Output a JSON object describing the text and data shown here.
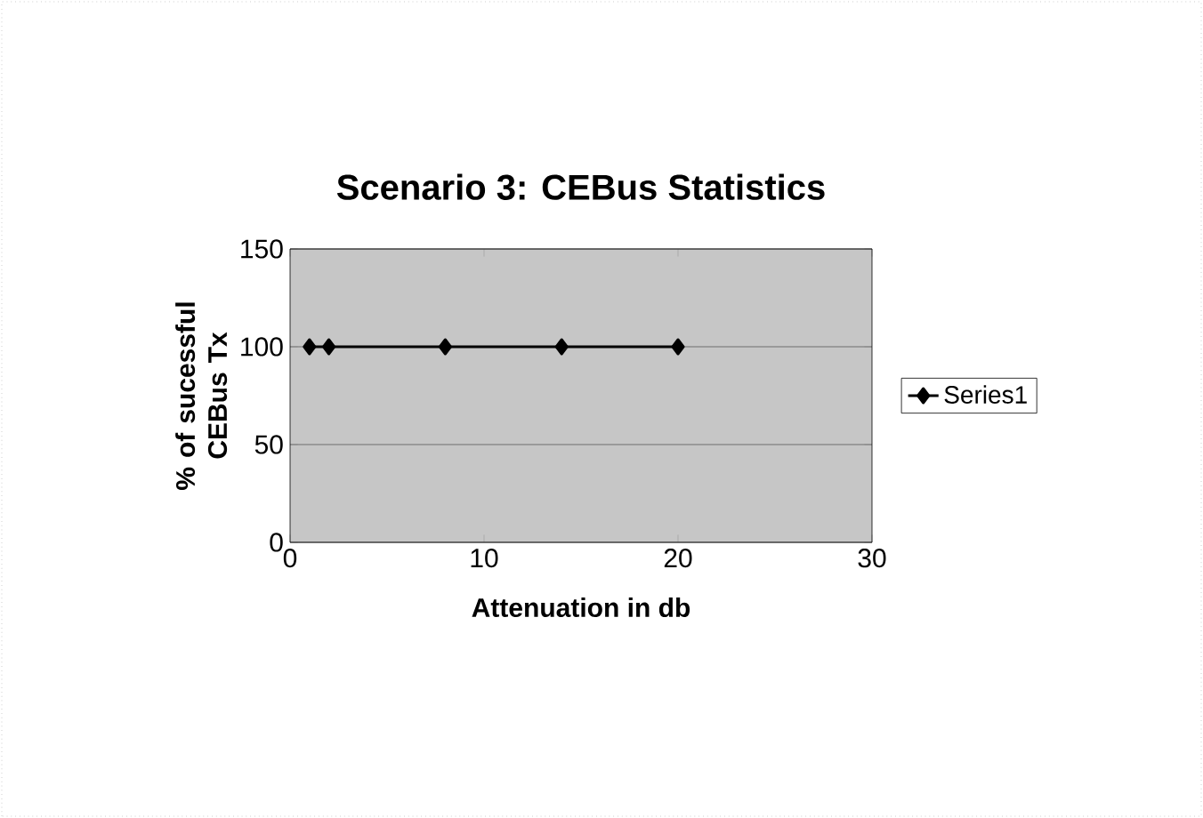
{
  "chart_data": {
    "type": "line",
    "title": "Scenario 3: CEBus Statistics",
    "xlabel": "Attenuation in db",
    "ylabel": "% of sucessful CEBus Tx",
    "x": [
      1,
      2,
      8,
      14,
      20
    ],
    "series": [
      {
        "name": "Series1",
        "color": "#000000",
        "values": [
          100,
          100,
          100,
          100,
          100
        ]
      }
    ],
    "xlim": [
      0,
      30
    ],
    "xticks": [
      0,
      10,
      20,
      30
    ],
    "ylim": [
      0,
      150
    ],
    "yticks": [
      0,
      50,
      100,
      150
    ],
    "grid": "y",
    "legend": "right",
    "marker": "diamond",
    "line_style": "solid"
  }
}
